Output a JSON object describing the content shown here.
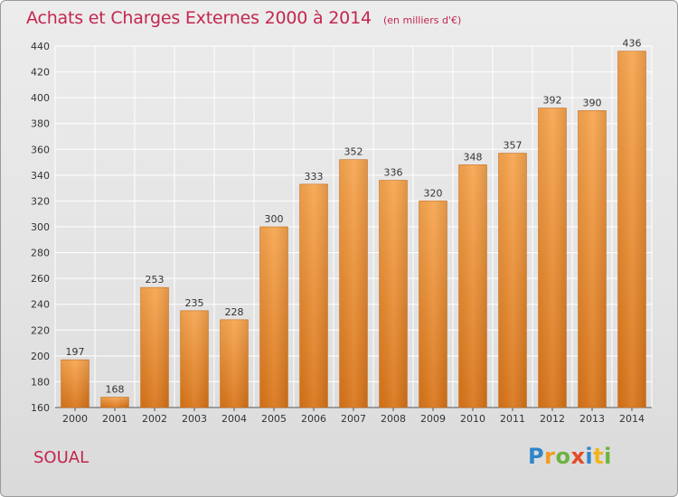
{
  "header": {
    "title": "Achats et Charges Externes 2000 à 2014",
    "unit": "(en milliers d'€)"
  },
  "footer": {
    "commune": "SOUAL",
    "logo_text": "Proxiti"
  },
  "colors": {
    "bar_light": "#f7a54e",
    "bar_dark": "#d97418",
    "title": "#c4264e",
    "grid": "#ffffff"
  },
  "chart_data": {
    "type": "bar",
    "title": "Achats et Charges Externes 2000 à 2014",
    "subtitle": "(en milliers d'€)",
    "xlabel": "",
    "ylabel": "",
    "categories": [
      "2000",
      "2001",
      "2002",
      "2003",
      "2004",
      "2005",
      "2006",
      "2007",
      "2008",
      "2009",
      "2010",
      "2011",
      "2012",
      "2013",
      "2014"
    ],
    "values": [
      197,
      168,
      253,
      235,
      228,
      300,
      333,
      352,
      336,
      320,
      348,
      357,
      392,
      390,
      436
    ],
    "ylim": [
      160,
      440
    ],
    "yticks": [
      160,
      180,
      200,
      220,
      240,
      260,
      280,
      300,
      320,
      340,
      360,
      380,
      400,
      420,
      440
    ],
    "grid": true,
    "legend": "none",
    "data_labels": true
  }
}
